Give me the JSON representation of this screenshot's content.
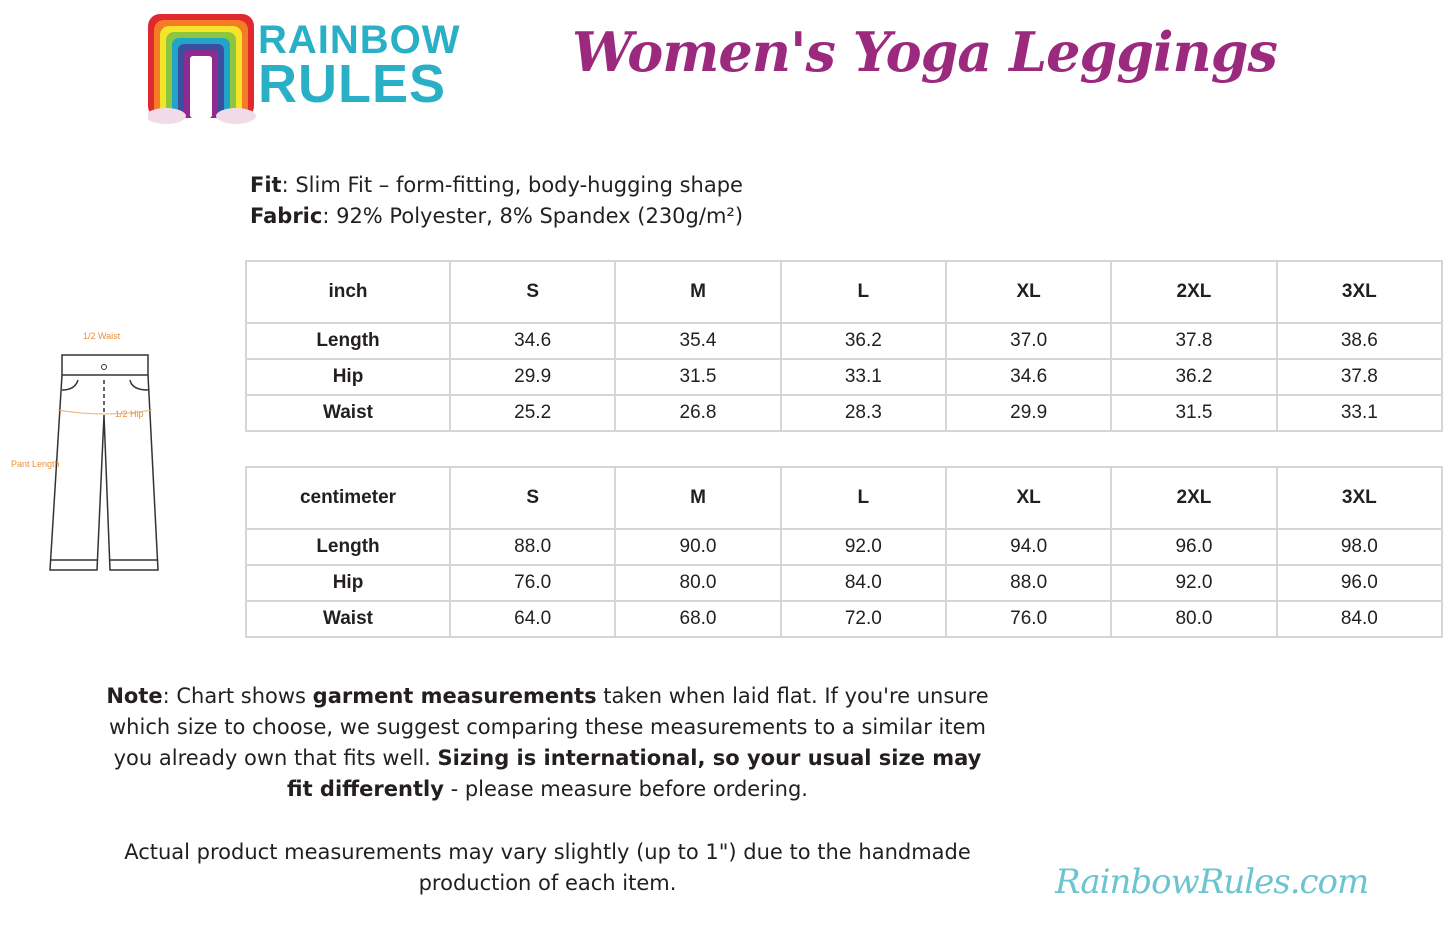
{
  "logo": {
    "line1": "RAINBOW",
    "line2": "RULES"
  },
  "title": "Women's Yoga Leggings",
  "specs": {
    "fit_label": "Fit",
    "fit_value": ": Slim Fit – form-fitting, body-hugging shape",
    "fabric_label": "Fabric",
    "fabric_value": ": 92% Polyester, 8% Spandex (230g/m²)"
  },
  "diagram": {
    "waist": "1/2 Waist",
    "hip": "1/2 Hip",
    "length": "Pant Length"
  },
  "tables": [
    {
      "unit": "inch",
      "sizes": [
        "S",
        "M",
        "L",
        "XL",
        "2XL",
        "3XL"
      ],
      "rows": [
        {
          "label": "Length",
          "values": [
            "34.6",
            "35.4",
            "36.2",
            "37.0",
            "37.8",
            "38.6"
          ]
        },
        {
          "label": "Hip",
          "values": [
            "29.9",
            "31.5",
            "33.1",
            "34.6",
            "36.2",
            "37.8"
          ]
        },
        {
          "label": "Waist",
          "values": [
            "25.2",
            "26.8",
            "28.3",
            "29.9",
            "31.5",
            "33.1"
          ]
        }
      ]
    },
    {
      "unit": "centimeter",
      "sizes": [
        "S",
        "M",
        "L",
        "XL",
        "2XL",
        "3XL"
      ],
      "rows": [
        {
          "label": "Length",
          "values": [
            "88.0",
            "90.0",
            "92.0",
            "94.0",
            "96.0",
            "98.0"
          ]
        },
        {
          "label": "Hip",
          "values": [
            "76.0",
            "80.0",
            "84.0",
            "88.0",
            "92.0",
            "96.0"
          ]
        },
        {
          "label": "Waist",
          "values": [
            "64.0",
            "68.0",
            "72.0",
            "76.0",
            "80.0",
            "84.0"
          ]
        }
      ]
    }
  ],
  "note": {
    "label": "Note",
    "t1": ": Chart shows ",
    "b1": "garment measurements",
    "t2": " taken when laid flat. If you're unsure which size to choose, we suggest comparing these measurements to a similar item you already own that fits well. ",
    "b2": "Sizing is international, so your usual size may fit differently",
    "t3": " - please measure before ordering."
  },
  "note2": "Actual product measurements may vary slightly (up to 1\") due to the handmade production of each item.",
  "website": "RainbowRules.com",
  "colors": {
    "title": "#9b2a7f",
    "logo_text": "#2ab0c6",
    "website": "#6cc4d0",
    "diagram_labels": "#e8913a"
  }
}
